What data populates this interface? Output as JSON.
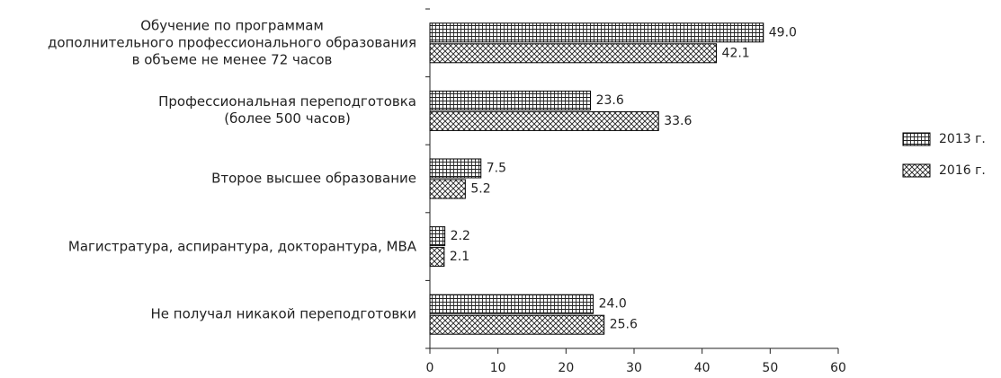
{
  "chart_data": {
    "type": "barh",
    "categories": [
      "Обучение по программам\nдополнительного профессионального образования\nв объеме не менее 72 часов",
      "Профессиональная переподготовка\n(более 500 часов)",
      "Второе высшее образование",
      "Магистратура, аспирантура, докторантура, MBA",
      "Не получал никакой переподготовки"
    ],
    "series": [
      {
        "name": "2013 г.",
        "color": "#000000",
        "pattern": "grid",
        "values": [
          49.0,
          23.6,
          7.5,
          2.2,
          24.0
        ],
        "value_labels": [
          "49.0",
          "23.6",
          "7.5",
          "2.2",
          "24.0"
        ]
      },
      {
        "name": "2016 г.",
        "color": "#000000",
        "pattern": "crosshatch",
        "values": [
          42.1,
          33.6,
          5.2,
          2.1,
          25.6
        ],
        "value_labels": [
          "42.1",
          "33.6",
          "5.2",
          "2.1",
          "25.6"
        ]
      }
    ],
    "xlim": [
      0,
      60
    ],
    "xticks": [
      0,
      10,
      20,
      30,
      40,
      50,
      60
    ],
    "legend": "right"
  }
}
